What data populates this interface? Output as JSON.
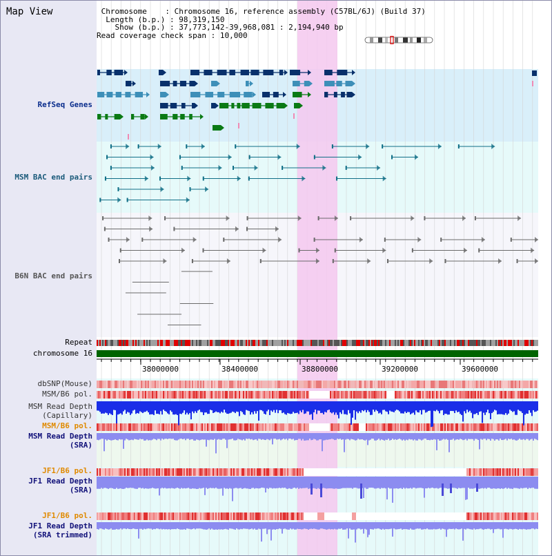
{
  "view_title": "Map View",
  "header": {
    "chromosome_label": "Chromosome",
    "chromosome_value": "Chromosome 16, reference assembly (C57BL/6J) (Build 37)",
    "length_label": "Length (b.p.)",
    "length_value": "98,319,150",
    "show_label": "Show (b.p.)",
    "show_value": "37,773,142-39,968,081 : 2,194,940 bp",
    "coverage_label": "Read coverage check span",
    "coverage_value": "10,000"
  },
  "tracks": {
    "refseq": "RefSeq Genes",
    "msm_bac": "MSM BAC end pairs",
    "b6n_bac": "B6N BAC end pairs",
    "repeat": "Repeat",
    "chromosome": "chromosome 16",
    "dbsnp": "dbSNP(Mouse)",
    "msm_b6_pol_1": "MSM/B6 pol.",
    "msm_depth_cap_1": "MSM Read Depth",
    "msm_depth_cap_2": "(Capillary)",
    "msm_b6_pol_2": "MSM/B6 pol.",
    "msm_depth_sra_1": "MSM Read Depth",
    "msm_depth_sra_2": "(SRA)",
    "jf1_b6_pol_1": "JF1/B6 pol.",
    "jf1_depth_sra_1": "JF1 Read Depth",
    "jf1_depth_sra_2": "(SRA)",
    "jf1_b6_pol_2": "JF1/B6 pol.",
    "jf1_depth_trim_1": "JF1 Read Depth",
    "jf1_depth_trim_2": "(SRA trimmed)"
  },
  "ruler": {
    "ticks": [
      "38000000",
      "38400000",
      "38800000",
      "39200000",
      "39600000"
    ]
  },
  "colors": {
    "refseq_navy": "#08306b",
    "refseq_steel": "#3d8fb8",
    "refseq_green": "#0a7a14",
    "msm_teal": "#0f6e86",
    "b6n_gray": "#6a6a6a",
    "highlight": "#f5c8ee",
    "chrom_green": "#006400",
    "depth_blue": "#1a2ee8",
    "depth_light": "#8c8cf0",
    "pol_red": "#e8201a"
  }
}
